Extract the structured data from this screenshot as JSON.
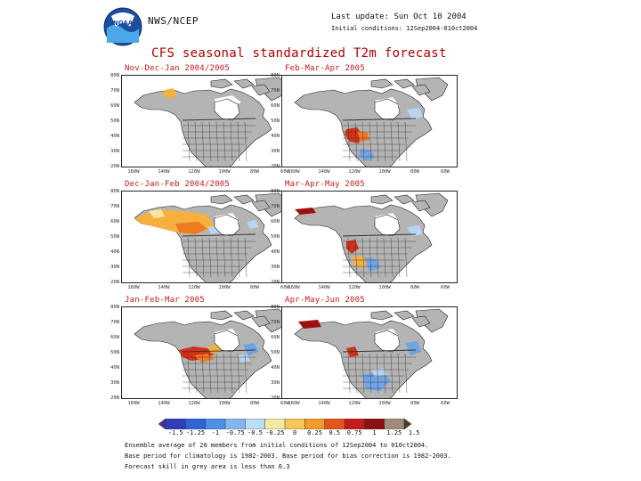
{
  "header": {
    "agency": "NWS/NCEP",
    "last_update": "Last update: Sun Oct 10 2004",
    "initial_conditions": "Initial conditions: 12Sep2004-010ct2004",
    "logo_text": "NOAA"
  },
  "title": "CFS seasonal standardized T2m forecast",
  "panels": [
    {
      "label": "Nov-Dec-Jan 2004/2005"
    },
    {
      "label": "Feb-Mar-Apr 2005"
    },
    {
      "label": "Dec-Jan-Feb 2004/2005"
    },
    {
      "label": "Mar-Apr-May 2005"
    },
    {
      "label": "Jan-Feb-Mar 2005"
    },
    {
      "label": "Apr-May-Jun 2005"
    }
  ],
  "latitude_labels": [
    "80N",
    "70N",
    "60N",
    "50N",
    "40N",
    "30N",
    "20N"
  ],
  "longitude_labels": [
    "160W",
    "140W",
    "120W",
    "100W",
    "80W",
    "60W"
  ],
  "colorbar": {
    "labels": [
      "-1.5",
      "-1.25",
      "-1",
      "-0.75",
      "-0.5",
      "-0.25",
      "0",
      "0.25",
      "0.5",
      "0.75",
      "1",
      "1.25",
      "1.5"
    ],
    "colors": [
      "#4b2a9a",
      "#2c3fb8",
      "#2f63d6",
      "#4f8fe6",
      "#84b6ee",
      "#bfdcf5",
      "#f3e9a0",
      "#f7c65a",
      "#f39a2a",
      "#e4551c",
      "#c51a1a",
      "#8e1010",
      "#a08a7a",
      "#4a3a30"
    ]
  },
  "map_colors": {
    "grey": "#b4b4b4",
    "yellow": "#f3e9a0",
    "orange": "#f7b040",
    "dark_orange": "#ee7a22",
    "red": "#d43018",
    "dark_red": "#a01010",
    "light_blue": "#b9d5f2",
    "blue": "#6fa4e6",
    "white": "#ffffff"
  },
  "notes": [
    "Ensemble average of 20 members from initial conditions of 12Sep2004 to 010ct2004.",
    "Base period for climatology is 1982-2003. Base period for bias correction is 1982-2003.",
    "Forecast skill in grey area is less than 0.3"
  ]
}
